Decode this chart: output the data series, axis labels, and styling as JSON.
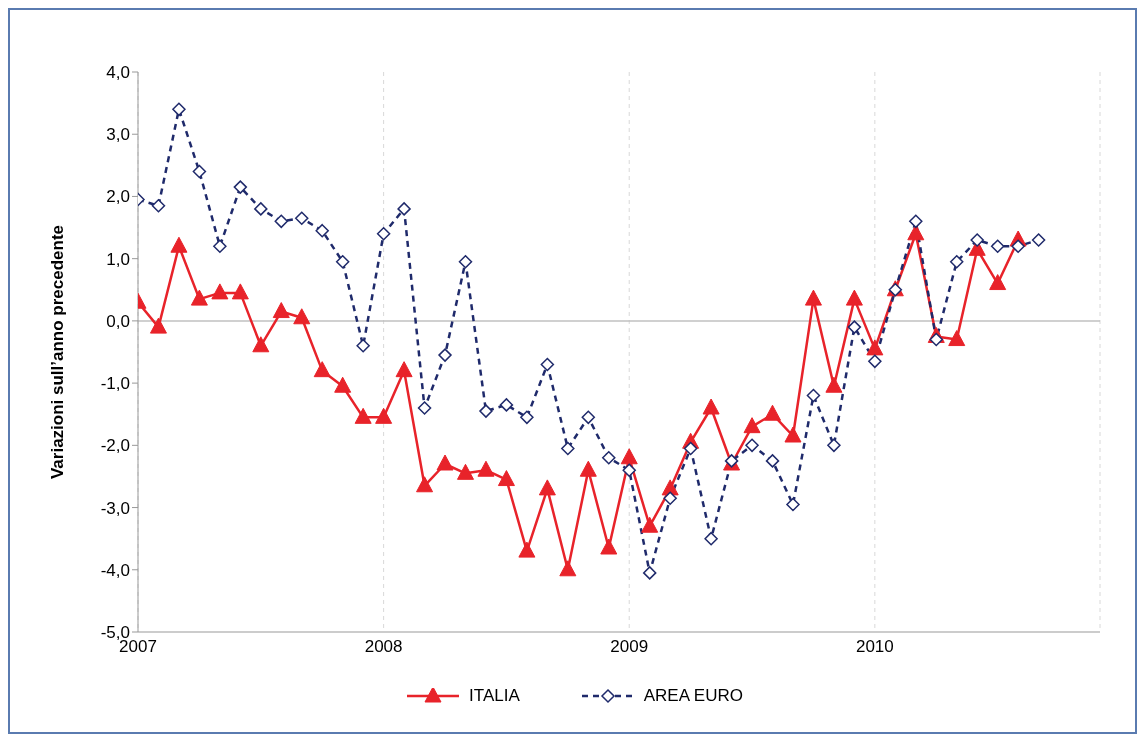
{
  "chart_data": {
    "type": "line",
    "ylabel": "Variazioni sull’anno precedente",
    "x": [
      "2007-01",
      "2007-02",
      "2007-03",
      "2007-04",
      "2007-05",
      "2007-06",
      "2007-07",
      "2007-08",
      "2007-09",
      "2007-10",
      "2007-11",
      "2007-12",
      "2008-01",
      "2008-02",
      "2008-03",
      "2008-04",
      "2008-05",
      "2008-06",
      "2008-07",
      "2008-08",
      "2008-09",
      "2008-10",
      "2008-11",
      "2008-12",
      "2009-01",
      "2009-02",
      "2009-03",
      "2009-04",
      "2009-05",
      "2009-06",
      "2009-07",
      "2009-08",
      "2009-09",
      "2009-10",
      "2009-11",
      "2009-12",
      "2010-01",
      "2010-02",
      "2010-03",
      "2010-04",
      "2010-05",
      "2010-06",
      "2010-07",
      "2010-08",
      "2010-09"
    ],
    "series": [
      {
        "name": "ITALIA",
        "color": "#e8232a",
        "marker": "triangle",
        "line_style": "solid",
        "values": [
          0.3,
          -0.1,
          1.2,
          0.35,
          0.45,
          0.45,
          -0.4,
          0.15,
          0.05,
          -0.8,
          -1.05,
          -1.55,
          -1.55,
          -0.8,
          -2.65,
          -2.3,
          -2.45,
          -2.4,
          -2.55,
          -3.7,
          -2.7,
          -4.0,
          -2.4,
          -3.65,
          -2.2,
          -3.3,
          -2.7,
          -1.95,
          -1.4,
          -2.3,
          -1.7,
          -1.5,
          -1.85,
          0.35,
          -1.05,
          0.35,
          -0.45,
          0.5,
          1.4,
          -0.25,
          -0.3,
          1.15,
          0.6,
          1.3,
          null
        ]
      },
      {
        "name": "AREA EURO",
        "color": "#1f2a6b",
        "marker": "diamond",
        "line_style": "dashed",
        "values": [
          1.95,
          1.85,
          3.4,
          2.4,
          1.2,
          2.15,
          1.8,
          1.6,
          1.65,
          1.45,
          0.95,
          -0.4,
          1.4,
          1.8,
          -1.4,
          -0.55,
          0.95,
          -1.45,
          -1.35,
          -1.55,
          -0.7,
          -2.05,
          -1.55,
          -2.2,
          -2.4,
          -4.05,
          -2.85,
          -2.05,
          -3.5,
          -2.25,
          -2.0,
          -2.25,
          -2.95,
          -1.2,
          -2.0,
          -0.1,
          -0.65,
          0.5,
          1.6,
          -0.3,
          0.95,
          1.3,
          1.2,
          1.2,
          1.3
        ]
      }
    ],
    "xlim": [
      "2007-01",
      "2010-12"
    ],
    "xticks": [
      "2007",
      "2008",
      "2009",
      "2010"
    ],
    "ylim": [
      -5,
      4
    ],
    "yticks": [
      {
        "value": -5,
        "label": "-5,0"
      },
      {
        "value": -4,
        "label": "-4,0"
      },
      {
        "value": -3,
        "label": "-3,0"
      },
      {
        "value": -2,
        "label": "-2,0"
      },
      {
        "value": -1,
        "label": "-1,0"
      },
      {
        "value": 0,
        "label": "0,0"
      },
      {
        "value": 1,
        "label": "1,0"
      },
      {
        "value": 2,
        "label": "2,0"
      },
      {
        "value": 3,
        "label": "3,0"
      },
      {
        "value": 4,
        "label": "4,0"
      }
    ],
    "ref_lines": [
      {
        "axis": "y",
        "value": 0,
        "color": "#c0c0c0"
      }
    ],
    "grid": "x",
    "legend": "bottom"
  }
}
